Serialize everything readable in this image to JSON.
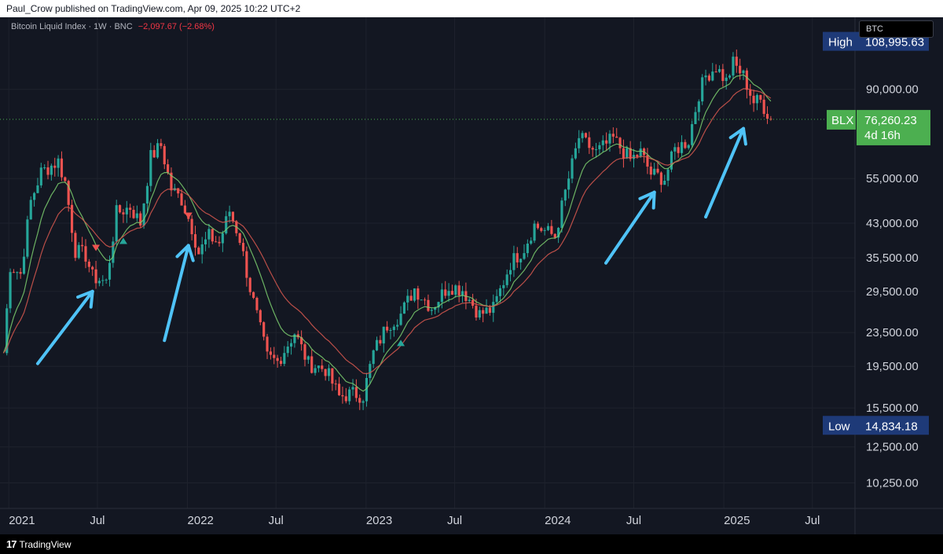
{
  "header": {
    "published": "Paul_Crow published on TradingView.com, Apr 09, 2025 10:22 UTC+2"
  },
  "symbol": {
    "title": "Bitcoin Liquid Index · 1W · BNC",
    "change": "−2,097.67 (−2.68%)"
  },
  "compare": {
    "label": "BTC"
  },
  "labels": {
    "high_tag": "High",
    "high_value": "108,995.63",
    "low_tag": "Low",
    "low_value": "14,834.18",
    "last_tag": "BLX",
    "last_value": "76,260.23",
    "last_countdown": "4d 16h"
  },
  "footer": {
    "brand": "TradingView"
  },
  "colors": {
    "up": "#26a69a",
    "down": "#ef5350",
    "ma_fast": "#7ccf6f",
    "ma_slow": "#d8584f",
    "arrow": "#4fc3f7",
    "last": "#4caf50",
    "badge": "#1e3a78",
    "bg": "#131722"
  },
  "chart_data": {
    "type": "candlestick",
    "scale": "log",
    "interval": "1W",
    "ylim": [
      8900,
      134000
    ],
    "x_range": [
      "2020-12-14",
      "2025-09-26"
    ],
    "y_ticks": [
      "90,000.00",
      "55,000.00",
      "43,000.00",
      "35,500.00",
      "29,500.00",
      "23,500.00",
      "19,500.00",
      "15,500.00",
      "12,500.00",
      "10,250.00"
    ],
    "x_ticks": [
      {
        "date": "2021-01-01",
        "label": "2021"
      },
      {
        "date": "2021-07-01",
        "label": "Jul"
      },
      {
        "date": "2022-01-01",
        "label": "2022"
      },
      {
        "date": "2022-07-01",
        "label": "Jul"
      },
      {
        "date": "2023-01-01",
        "label": "2023"
      },
      {
        "date": "2023-07-01",
        "label": "Jul"
      },
      {
        "date": "2024-01-01",
        "label": "2024"
      },
      {
        "date": "2024-07-01",
        "label": "Jul"
      },
      {
        "date": "2025-01-01",
        "label": "2025"
      },
      {
        "date": "2025-07-01",
        "label": "Jul"
      }
    ],
    "high": 108995.63,
    "low": 14834.18,
    "last": 76260.23,
    "price_path": [
      [
        "2020-12-21",
        21000
      ],
      [
        "2021-01-04",
        34000
      ],
      [
        "2021-01-25",
        32500
      ],
      [
        "2021-02-15",
        48500
      ],
      [
        "2021-03-08",
        57000
      ],
      [
        "2021-04-12",
        60500
      ],
      [
        "2021-04-26",
        54000
      ],
      [
        "2021-05-17",
        37000
      ],
      [
        "2021-06-07",
        36000
      ],
      [
        "2021-06-21",
        32000
      ],
      [
        "2021-07-19",
        31000
      ],
      [
        "2021-08-09",
        45500
      ],
      [
        "2021-09-06",
        47000
      ],
      [
        "2021-09-27",
        43000
      ],
      [
        "2021-10-18",
        62000
      ],
      [
        "2021-11-08",
        66000
      ],
      [
        "2021-11-29",
        52000
      ],
      [
        "2021-12-20",
        49000
      ],
      [
        "2022-01-10",
        42000
      ],
      [
        "2022-01-24",
        36500
      ],
      [
        "2022-02-14",
        40000
      ],
      [
        "2022-03-07",
        38500
      ],
      [
        "2022-03-28",
        46000
      ],
      [
        "2022-04-18",
        39500
      ],
      [
        "2022-05-09",
        30000
      ],
      [
        "2022-06-13",
        20500
      ],
      [
        "2022-07-04",
        20000
      ],
      [
        "2022-08-08",
        23500
      ],
      [
        "2022-09-05",
        19800
      ],
      [
        "2022-10-10",
        19200
      ],
      [
        "2022-11-07",
        16500
      ],
      [
        "2022-12-05",
        16800
      ],
      [
        "2022-12-26",
        16600
      ],
      [
        "2023-01-16",
        21000
      ],
      [
        "2023-02-13",
        24500
      ],
      [
        "2023-03-13",
        26000
      ],
      [
        "2023-04-10",
        30000
      ],
      [
        "2023-05-15",
        27000
      ],
      [
        "2023-06-19",
        30500
      ],
      [
        "2023-07-17",
        29800
      ],
      [
        "2023-08-21",
        26000
      ],
      [
        "2023-09-18",
        26800
      ],
      [
        "2023-10-23",
        34500
      ],
      [
        "2023-11-20",
        37500
      ],
      [
        "2023-12-11",
        42500
      ],
      [
        "2024-01-22",
        40000
      ],
      [
        "2024-02-12",
        51000
      ],
      [
        "2024-03-11",
        69000
      ],
      [
        "2024-04-15",
        63500
      ],
      [
        "2024-05-20",
        68500
      ],
      [
        "2024-06-24",
        61000
      ],
      [
        "2024-07-15",
        63500
      ],
      [
        "2024-08-05",
        56500
      ],
      [
        "2024-09-02",
        55000
      ],
      [
        "2024-09-23",
        64500
      ],
      [
        "2024-10-21",
        68000
      ],
      [
        "2024-11-11",
        88000
      ],
      [
        "2024-11-25",
        97000
      ],
      [
        "2024-12-16",
        102000
      ],
      [
        "2025-01-06",
        94000
      ],
      [
        "2025-01-20",
        104000
      ],
      [
        "2025-02-10",
        97000
      ],
      [
        "2025-03-03",
        84000
      ],
      [
        "2025-03-17",
        84500
      ],
      [
        "2025-04-07",
        76260
      ]
    ],
    "signals": [
      {
        "date": "2021-06-28",
        "price": 37500,
        "side": "sell"
      },
      {
        "date": "2021-08-23",
        "price": 39000,
        "side": "buy"
      },
      {
        "date": "2022-01-03",
        "price": 44800,
        "side": "sell"
      },
      {
        "date": "2023-03-13",
        "price": 22200,
        "side": "buy"
      }
    ],
    "annotations": [
      {
        "type": "arrow",
        "from": [
          "2021-03-01",
          19800
        ],
        "to": [
          "2021-06-21",
          29500
        ]
      },
      {
        "type": "arrow",
        "from": [
          "2021-11-15",
          22500
        ],
        "to": [
          "2022-01-03",
          38000
        ]
      },
      {
        "type": "arrow",
        "from": [
          "2024-05-05",
          34500
        ],
        "to": [
          "2024-08-12",
          51000
        ]
      },
      {
        "type": "arrow",
        "from": [
          "2024-11-25",
          44500
        ],
        "to": [
          "2025-02-10",
          72500
        ]
      }
    ]
  }
}
